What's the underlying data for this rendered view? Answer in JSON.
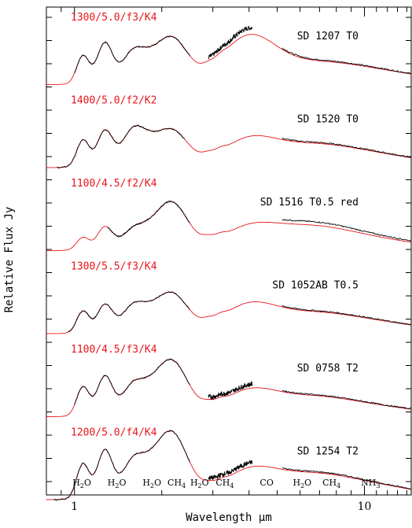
{
  "chart_data": {
    "type": "line",
    "xlabel": "Wavelength μm",
    "ylabel": "Relative Flux Jy",
    "xscale": "log",
    "xlim": [
      0.8,
      14.5
    ],
    "xticks": [
      {
        "value": 1,
        "label": "1"
      },
      {
        "value": 10,
        "label": "10"
      }
    ],
    "colors": {
      "observed": "#000000",
      "model": "#e8161b"
    },
    "panels": [
      {
        "object": "SD 1207 T0",
        "model": "1300/5.0/f3/K4",
        "peaks": [
          0.58,
          0.8,
          0.61,
          0.93,
          0.82,
          0.3,
          0.25
        ],
        "observed_ranges": [
          [
            1.0,
            2.5
          ],
          [
            2.9,
            4.1
          ],
          [
            5.2,
            14.5
          ]
        ]
      },
      {
        "object": "SD 1520 T0",
        "model": "1400/5.0/f2/K2",
        "peaks": [
          0.55,
          0.7,
          0.72,
          0.74,
          0.42,
          0.33,
          0.23
        ],
        "observed_ranges": [
          [
            0.87,
            2.4
          ],
          [
            5.2,
            14.5
          ]
        ]
      },
      {
        "object": "SD 1516 T0.5 red",
        "model": "1100/4.5/f2/K4",
        "peaks": [
          0.26,
          0.45,
          0.39,
          0.96,
          0.31,
          0.38,
          0.19
        ],
        "observed_ranges": [
          [
            1.3,
            2.5
          ],
          [
            5.2,
            14.5
          ]
        ]
      },
      {
        "object": "SD 1052AB T0.5",
        "model": "1300/5.5/f3/K4",
        "peaks": [
          0.45,
          0.55,
          0.52,
          0.8,
          0.44,
          0.3,
          0.2
        ],
        "observed_ranges": [
          [
            0.95,
            2.5
          ],
          [
            5.2,
            14.5
          ]
        ]
      },
      {
        "object": "SD 0758 T2",
        "model": "1100/4.5/f3/K4",
        "peaks": [
          0.6,
          0.78,
          0.58,
          1.12,
          0.38,
          0.3,
          0.17
        ],
        "observed_ranges": [
          [
            1.0,
            2.5
          ],
          [
            2.9,
            4.1
          ],
          [
            5.2,
            14.5
          ]
        ]
      },
      {
        "object": "SD 1254 T2",
        "model": "1200/5.0/f4/K4",
        "peaks": [
          0.72,
          0.95,
          0.72,
          1.35,
          0.42,
          0.38,
          0.24
        ],
        "observed_ranges": [
          [
            0.85,
            2.5
          ],
          [
            2.9,
            4.1
          ],
          [
            5.2,
            14.5
          ]
        ]
      }
    ],
    "band_labels": [
      {
        "sub": "H2O",
        "base": "H",
        "subscript": "2",
        "rest": "O",
        "x": 1.06
      },
      {
        "sub": "H2O",
        "base": "H",
        "subscript": "2",
        "rest": "O",
        "x": 1.4
      },
      {
        "sub": "H2O",
        "base": "H",
        "subscript": "2",
        "rest": "O",
        "x": 1.85
      },
      {
        "sub": "CH4",
        "base": "CH",
        "subscript": "4",
        "rest": "",
        "x": 2.25
      },
      {
        "sub": "H2O",
        "base": "H",
        "subscript": "2",
        "rest": "O",
        "x": 2.7
      },
      {
        "sub": "CH4",
        "base": "CH",
        "subscript": "4",
        "rest": "",
        "x": 3.3
      },
      {
        "sub": "CO",
        "base": "CO",
        "subscript": "",
        "rest": "",
        "x": 4.6
      },
      {
        "sub": "H2O",
        "base": "H",
        "subscript": "2",
        "rest": "O",
        "x": 6.1
      },
      {
        "sub": "CH4",
        "base": "CH",
        "subscript": "4",
        "rest": "",
        "x": 7.7
      },
      {
        "sub": "NH3",
        "base": "NH",
        "subscript": "3",
        "rest": "",
        "x": 10.5
      }
    ]
  }
}
